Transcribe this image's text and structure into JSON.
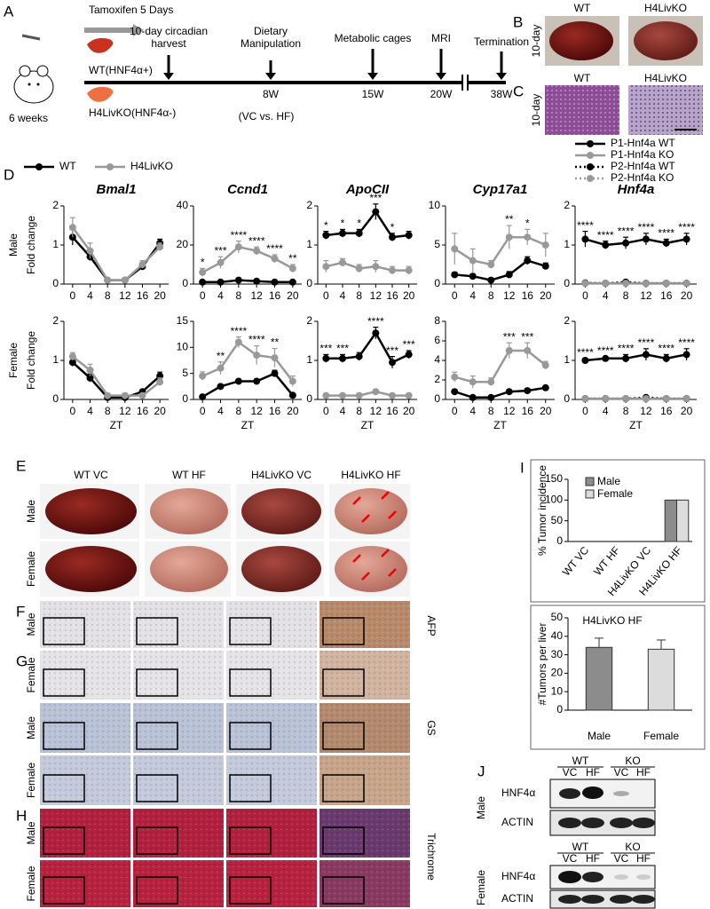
{
  "panel_letters": [
    "A",
    "B",
    "C",
    "D",
    "E",
    "F",
    "G",
    "H",
    "I",
    "J"
  ],
  "timeline": {
    "treatment": "Tamoxifen 5 Days",
    "age": "6 weeks",
    "wt": "WT(HNF4α+)",
    "ko": "H4LivKO(HNF4α-)",
    "diet": "(VC vs. HF)",
    "events": [
      {
        "label": "10-day circadian harvest"
      },
      {
        "label": "Dietary Manipulation",
        "time": "8W"
      },
      {
        "label": "Metabolic cages",
        "time": "15W"
      },
      {
        "label": "MRI",
        "time": "20W"
      },
      {
        "label": "Termination",
        "time": "38W"
      }
    ]
  },
  "bc": {
    "row_label": "10-day",
    "columns": [
      "WT",
      "H4LivKO"
    ]
  },
  "e": {
    "columns": [
      "WT VC",
      "WT HF",
      "H4LivKO VC",
      "H4LivKO HF"
    ],
    "rows": [
      "Male",
      "Female"
    ]
  },
  "histology": {
    "stains": [
      "AFP",
      "GS",
      "Trichrome"
    ],
    "rows": [
      "Male",
      "Female"
    ]
  },
  "western": {
    "genotypes": [
      "WT",
      "KO"
    ],
    "diets": [
      "VC",
      "HF"
    ],
    "proteins": [
      "HNF4α",
      "ACTIN"
    ],
    "sexes": [
      "Male",
      "Female"
    ]
  },
  "chart_data": [
    {
      "type": "line",
      "title": "Bmal1",
      "ylabel": "Fold change",
      "row_label": "Male",
      "legend": "top",
      "x": [
        0,
        4,
        8,
        12,
        16,
        20
      ],
      "xlim": [
        -2,
        22
      ],
      "xticks": [
        0,
        4,
        8,
        12,
        16,
        20
      ],
      "ylim": [
        0,
        2
      ],
      "yticks": [
        0,
        1,
        2
      ],
      "series": [
        {
          "name": "WT",
          "color": "#000000",
          "values": [
            1.2,
            0.7,
            0.1,
            0.1,
            0.45,
            1.05
          ],
          "errors": [
            0.2,
            0.1,
            0.03,
            0.03,
            0.08,
            0.1
          ]
        },
        {
          "name": "H4LivKO",
          "color": "#999999",
          "values": [
            1.45,
            0.85,
            0.1,
            0.1,
            0.5,
            0.95
          ],
          "errors": [
            0.25,
            0.2,
            0.05,
            0.05,
            0.1,
            0.1
          ]
        }
      ]
    },
    {
      "type": "line",
      "title": "Ccnd1",
      "x": [
        0,
        4,
        8,
        12,
        16,
        20
      ],
      "xlim": [
        -2,
        22
      ],
      "xticks": [
        0,
        4,
        8,
        12,
        16,
        20
      ],
      "ylim": [
        0,
        40
      ],
      "yticks": [
        0,
        20,
        40
      ],
      "stars": [
        "*",
        "***",
        "****",
        "****",
        "****",
        "**"
      ],
      "series": [
        {
          "color": "#000000",
          "values": [
            1,
            1,
            2,
            1.5,
            1,
            1
          ],
          "errors": [
            0.5,
            0.5,
            0.5,
            0.5,
            0.5,
            0.5
          ]
        },
        {
          "color": "#999999",
          "values": [
            6,
            11,
            19,
            17,
            13,
            8
          ],
          "errors": [
            2,
            3,
            3,
            2,
            2,
            2
          ]
        }
      ]
    },
    {
      "type": "line",
      "title": "ApoCII",
      "x": [
        0,
        4,
        8,
        12,
        16,
        20
      ],
      "xlim": [
        -2,
        22
      ],
      "xticks": [
        0,
        4,
        8,
        12,
        16,
        20
      ],
      "ylim": [
        0,
        2
      ],
      "yticks": [
        0,
        1,
        2
      ],
      "stars": [
        "*",
        "*",
        "*",
        "***",
        "*",
        null
      ],
      "series": [
        {
          "color": "#000000",
          "values": [
            1.25,
            1.3,
            1.3,
            1.85,
            1.2,
            1.25
          ],
          "errors": [
            0.1,
            0.1,
            0.1,
            0.2,
            0.1,
            0.1
          ]
        },
        {
          "color": "#999999",
          "values": [
            0.45,
            0.55,
            0.4,
            0.45,
            0.35,
            0.35
          ],
          "errors": [
            0.15,
            0.1,
            0.1,
            0.15,
            0.1,
            0.1
          ]
        }
      ]
    },
    {
      "type": "line",
      "title": "Cyp17a1",
      "x": [
        0,
        4,
        8,
        12,
        16,
        20
      ],
      "xlim": [
        -2,
        22
      ],
      "xticks": [
        0,
        4,
        8,
        12,
        16,
        20
      ],
      "ylim": [
        0,
        10
      ],
      "yticks": [
        0,
        5,
        10
      ],
      "stars": [
        null,
        null,
        null,
        "**",
        "*",
        null
      ],
      "series": [
        {
          "color": "#000000",
          "values": [
            1.2,
            1,
            0.5,
            1.2,
            3,
            2.3
          ],
          "errors": [
            0.3,
            0.3,
            0.2,
            0.4,
            0.5,
            0.4
          ]
        },
        {
          "color": "#999999",
          "values": [
            4.5,
            3,
            2.5,
            6,
            6,
            5
          ],
          "errors": [
            2,
            1.5,
            0.5,
            1.5,
            1,
            1.5
          ]
        }
      ]
    },
    {
      "type": "line",
      "title": "Hnf4a",
      "legend": "top",
      "x": [
        0,
        4,
        8,
        12,
        16,
        20
      ],
      "xlim": [
        -2,
        22
      ],
      "xticks": [
        0,
        4,
        8,
        12,
        16,
        20
      ],
      "ylim": [
        0,
        2
      ],
      "yticks": [
        0,
        1,
        2
      ],
      "stars": [
        "****",
        "****",
        "****",
        "****",
        "****",
        "****"
      ],
      "series": [
        {
          "name": "P1-Hnf4a WT",
          "color": "#000000",
          "values": [
            1.15,
            1.0,
            1.05,
            1.15,
            1.05,
            1.15
          ],
          "errors": [
            0.2,
            0.1,
            0.15,
            0.15,
            0.1,
            0.15
          ]
        },
        {
          "name": "P1-Hnf4a KO",
          "color": "#999999",
          "values": [
            0.02,
            0.02,
            0.02,
            0.02,
            0.02,
            0.02
          ],
          "errors": [
            0.01,
            0.01,
            0.01,
            0.01,
            0.01,
            0.01
          ]
        },
        {
          "name": "P2-Hnf4a WT",
          "color": "#000000",
          "line_style": "dotted",
          "values": [
            0.03,
            0.02,
            0.05,
            0.02,
            0.02,
            0.02
          ],
          "errors": [
            0.01,
            0.01,
            0.03,
            0.01,
            0.01,
            0.01
          ]
        },
        {
          "name": "P2-Hnf4a KO",
          "color": "#999999",
          "line_style": "dotted",
          "values": [
            0.02,
            0.02,
            0.02,
            0.02,
            0.02,
            0.02
          ],
          "errors": [
            0.01,
            0.01,
            0.01,
            0.01,
            0.01,
            0.01
          ]
        }
      ]
    },
    {
      "type": "line",
      "ylabel": "Fold change",
      "row_label": "Female",
      "xlabel": "ZT",
      "x": [
        0,
        4,
        8,
        12,
        16,
        20
      ],
      "xlim": [
        -2,
        22
      ],
      "xticks": [
        0,
        4,
        8,
        12,
        16,
        20
      ],
      "ylim": [
        0,
        2
      ],
      "yticks": [
        0,
        1,
        2
      ],
      "series": [
        {
          "color": "#000000",
          "values": [
            0.95,
            0.55,
            0.05,
            0.05,
            0.2,
            0.6
          ],
          "errors": [
            0.1,
            0.1,
            0.02,
            0.02,
            0.05,
            0.1
          ]
        },
        {
          "color": "#999999",
          "values": [
            1.1,
            0.75,
            0.1,
            0.1,
            0.1,
            0.45
          ],
          "errors": [
            0.1,
            0.15,
            0.05,
            0.05,
            0.05,
            0.1
          ]
        }
      ]
    },
    {
      "type": "line",
      "xlabel": "ZT",
      "x": [
        0,
        4,
        8,
        12,
        16,
        20
      ],
      "xlim": [
        -2,
        22
      ],
      "xticks": [
        0,
        4,
        8,
        12,
        16,
        20
      ],
      "ylim": [
        0,
        15
      ],
      "yticks": [
        0,
        5,
        10,
        15
      ],
      "stars": [
        null,
        "**",
        "****",
        "****",
        "**",
        null
      ],
      "series": [
        {
          "color": "#000000",
          "values": [
            0.5,
            2.5,
            3.5,
            3.5,
            5,
            0.8
          ],
          "errors": [
            0.2,
            0.4,
            0.4,
            0.4,
            0.6,
            0.3
          ]
        },
        {
          "color": "#999999",
          "values": [
            4.5,
            6,
            11,
            8.5,
            8,
            3.5
          ],
          "errors": [
            0.8,
            1.2,
            1,
            1.8,
            1.8,
            1
          ]
        }
      ]
    },
    {
      "type": "line",
      "xlabel": "ZT",
      "x": [
        0,
        4,
        8,
        12,
        16,
        20
      ],
      "xlim": [
        -2,
        22
      ],
      "xticks": [
        0,
        4,
        8,
        12,
        16,
        20
      ],
      "ylim": [
        0,
        2
      ],
      "yticks": [
        0,
        1,
        2
      ],
      "stars": [
        "***",
        "***",
        null,
        "****",
        "***",
        "***"
      ],
      "series": [
        {
          "color": "#000000",
          "values": [
            1.05,
            1.05,
            1.1,
            1.7,
            0.95,
            1.15
          ],
          "errors": [
            0.1,
            0.1,
            0.1,
            0.15,
            0.15,
            0.1
          ]
        },
        {
          "color": "#999999",
          "values": [
            0.1,
            0.1,
            0.1,
            0.2,
            0.1,
            0.1
          ],
          "errors": [
            0.03,
            0.03,
            0.03,
            0.05,
            0.03,
            0.03
          ]
        }
      ]
    },
    {
      "type": "line",
      "xlabel": "ZT",
      "x": [
        0,
        4,
        8,
        12,
        16,
        20
      ],
      "xlim": [
        -2,
        22
      ],
      "xticks": [
        0,
        4,
        8,
        12,
        16,
        20
      ],
      "ylim": [
        0,
        8
      ],
      "yticks": [
        0,
        2,
        4,
        6,
        8
      ],
      "stars": [
        null,
        null,
        null,
        "***",
        "***",
        null
      ],
      "series": [
        {
          "color": "#000000",
          "values": [
            0.8,
            0.2,
            0.2,
            0.8,
            0.9,
            1.2
          ],
          "errors": [
            0.2,
            0.1,
            0.1,
            0.2,
            0.2,
            0.2
          ]
        },
        {
          "color": "#999999",
          "values": [
            2.3,
            1.8,
            1.8,
            5,
            5,
            3.5
          ],
          "errors": [
            0.5,
            0.6,
            0.4,
            0.8,
            0.8,
            0.4
          ]
        }
      ]
    },
    {
      "type": "line",
      "xlabel": "ZT",
      "x": [
        0,
        4,
        8,
        12,
        16,
        20
      ],
      "xlim": [
        -2,
        22
      ],
      "xticks": [
        0,
        4,
        8,
        12,
        16,
        20
      ],
      "ylim": [
        0,
        2
      ],
      "yticks": [
        0,
        1,
        2
      ],
      "stars": [
        "****",
        "****",
        "****",
        "****",
        "****",
        "****"
      ],
      "series": [
        {
          "color": "#000000",
          "values": [
            1.0,
            1.05,
            1.05,
            1.15,
            1.05,
            1.15
          ],
          "errors": [
            0.05,
            0.05,
            0.1,
            0.15,
            0.1,
            0.15
          ]
        },
        {
          "color": "#999999",
          "values": [
            0.02,
            0.02,
            0.02,
            0.02,
            0.02,
            0.02
          ],
          "errors": [
            0.01,
            0.01,
            0.01,
            0.01,
            0.01,
            0.01
          ]
        },
        {
          "color": "#000000",
          "line_style": "dotted",
          "values": [
            0.02,
            0.02,
            0.02,
            0.05,
            0.02,
            0.02
          ],
          "errors": [
            0.01,
            0.01,
            0.01,
            0.03,
            0.01,
            0.01
          ]
        },
        {
          "color": "#999999",
          "line_style": "dotted",
          "values": [
            0.02,
            0.02,
            0.02,
            0.02,
            0.02,
            0.02
          ],
          "errors": [
            0.01,
            0.01,
            0.01,
            0.01,
            0.01,
            0.01
          ]
        }
      ]
    },
    {
      "type": "bar",
      "ylabel": "% Tumor incidence",
      "legend": "top-left",
      "categories": [
        "WT VC",
        "WT HF",
        "H4LivKO VC",
        "H4LivKO HF"
      ],
      "ylim": [
        0,
        150
      ],
      "yticks": [
        0,
        50,
        100,
        150
      ],
      "series": [
        {
          "name": "Male",
          "color": "#8c8c8c",
          "values": [
            0,
            0,
            0,
            100
          ]
        },
        {
          "name": "Female",
          "color": "#dcdcdc",
          "values": [
            0,
            0,
            0,
            100
          ]
        }
      ]
    },
    {
      "type": "bar",
      "title": "H4LivKO HF",
      "ylabel": "#Tumors per liver",
      "categories": [
        "Male",
        "Female"
      ],
      "values": [
        34,
        33
      ],
      "errors": [
        5,
        5
      ],
      "colors": [
        "#8c8c8c",
        "#dcdcdc"
      ],
      "ylim": [
        0,
        50
      ],
      "yticks": [
        0,
        10,
        20,
        30,
        40,
        50
      ]
    }
  ]
}
